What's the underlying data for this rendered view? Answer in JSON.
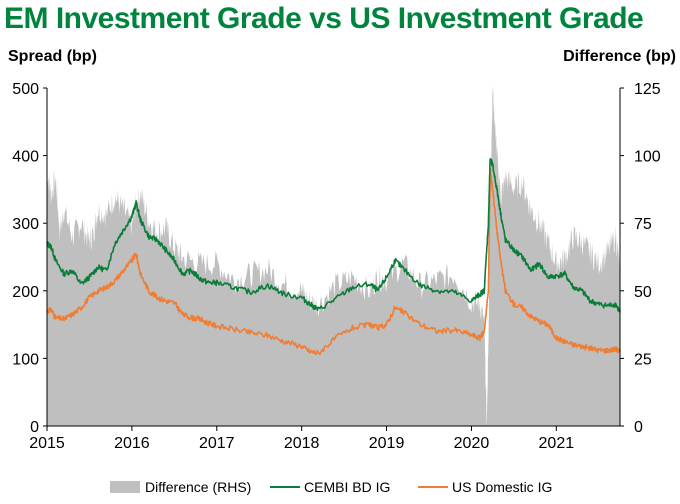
{
  "chart_data": {
    "type": "area+line",
    "title": "EM Investment Grade vs US Investment Grade",
    "ylabel_left": "Spread (bp)",
    "ylabel_right": "Difference (bp)",
    "x_ticks": [
      "2015",
      "2016",
      "2017",
      "2018",
      "2019",
      "2020",
      "2021"
    ],
    "x_range": [
      2015.0,
      2021.75
    ],
    "y_left": {
      "range": [
        0,
        500
      ],
      "ticks": [
        0,
        100,
        200,
        300,
        400,
        500
      ]
    },
    "y_right": {
      "range": [
        0,
        125
      ],
      "ticks": [
        0,
        25,
        50,
        75,
        100,
        125
      ]
    },
    "colors": {
      "difference": "#bfbfbf",
      "cembi": "#0a7d3a",
      "us": "#f07d32",
      "title": "#00843d"
    },
    "series": [
      {
        "name": "Difference (RHS)",
        "axis": "right",
        "kind": "area",
        "x": [
          2015.0,
          2015.05,
          2015.1,
          2015.15,
          2015.2,
          2015.3,
          2015.4,
          2015.5,
          2015.55,
          2015.6,
          2015.7,
          2015.8,
          2015.9,
          2016.0,
          2016.05,
          2016.1,
          2016.2,
          2016.3,
          2016.4,
          2016.5,
          2016.6,
          2016.8,
          2017.0,
          2017.2,
          2017.4,
          2017.6,
          2017.8,
          2018.0,
          2018.1,
          2018.2,
          2018.4,
          2018.6,
          2018.8,
          2018.9,
          2019.0,
          2019.2,
          2019.4,
          2019.6,
          2019.8,
          2020.0,
          2020.1,
          2020.15,
          2020.18,
          2020.2,
          2020.22,
          2020.25,
          2020.28,
          2020.3,
          2020.35,
          2020.4,
          2020.5,
          2020.6,
          2020.7,
          2020.8,
          2020.9,
          2021.0,
          2021.1,
          2021.2,
          2021.3,
          2021.4,
          2021.5,
          2021.6,
          2021.7,
          2021.75
        ],
        "values": [
          95,
          85,
          92,
          72,
          80,
          70,
          75,
          68,
          72,
          80,
          78,
          85,
          80,
          74,
          82,
          86,
          76,
          72,
          73,
          66,
          62,
          60,
          60,
          54,
          56,
          58,
          52,
          50,
          46,
          45,
          52,
          55,
          50,
          55,
          54,
          60,
          52,
          54,
          56,
          46,
          45,
          38,
          0,
          30,
          85,
          125,
          110,
          100,
          85,
          92,
          88,
          90,
          80,
          75,
          68,
          60,
          62,
          70,
          68,
          64,
          60,
          64,
          70,
          58
        ]
      },
      {
        "name": "CEMBI BD IG",
        "axis": "left",
        "kind": "line",
        "x": [
          2015.0,
          2015.05,
          2015.1,
          2015.2,
          2015.3,
          2015.4,
          2015.5,
          2015.6,
          2015.7,
          2015.8,
          2015.9,
          2016.0,
          2016.05,
          2016.1,
          2016.2,
          2016.3,
          2016.4,
          2016.5,
          2016.6,
          2016.7,
          2016.8,
          2016.9,
          2017.0,
          2017.2,
          2017.4,
          2017.6,
          2017.8,
          2018.0,
          2018.1,
          2018.2,
          2018.4,
          2018.6,
          2018.8,
          2018.9,
          2019.0,
          2019.1,
          2019.2,
          2019.4,
          2019.6,
          2019.8,
          2020.0,
          2020.1,
          2020.15,
          2020.2,
          2020.22,
          2020.25,
          2020.3,
          2020.35,
          2020.4,
          2020.5,
          2020.6,
          2020.7,
          2020.8,
          2020.9,
          2021.0,
          2021.1,
          2021.2,
          2021.3,
          2021.4,
          2021.5,
          2021.6,
          2021.7,
          2021.75
        ],
        "values": [
          270,
          265,
          245,
          225,
          230,
          210,
          220,
          235,
          230,
          270,
          290,
          310,
          330,
          305,
          280,
          275,
          260,
          245,
          225,
          230,
          218,
          212,
          212,
          205,
          198,
          208,
          195,
          190,
          180,
          172,
          188,
          205,
          210,
          200,
          220,
          245,
          232,
          208,
          200,
          198,
          185,
          195,
          200,
          300,
          395,
          385,
          350,
          310,
          275,
          260,
          250,
          230,
          240,
          220,
          222,
          225,
          205,
          200,
          185,
          180,
          178,
          180,
          168
        ]
      },
      {
        "name": "US Domestic IG",
        "axis": "left",
        "kind": "line",
        "x": [
          2015.0,
          2015.05,
          2015.1,
          2015.2,
          2015.3,
          2015.4,
          2015.5,
          2015.6,
          2015.7,
          2015.8,
          2015.9,
          2016.0,
          2016.05,
          2016.1,
          2016.2,
          2016.3,
          2016.4,
          2016.5,
          2016.6,
          2016.7,
          2016.8,
          2016.9,
          2017.0,
          2017.2,
          2017.4,
          2017.6,
          2017.8,
          2018.0,
          2018.1,
          2018.2,
          2018.4,
          2018.6,
          2018.8,
          2018.9,
          2019.0,
          2019.1,
          2019.2,
          2019.4,
          2019.6,
          2019.8,
          2020.0,
          2020.1,
          2020.15,
          2020.2,
          2020.22,
          2020.25,
          2020.3,
          2020.35,
          2020.4,
          2020.5,
          2020.6,
          2020.7,
          2020.8,
          2020.9,
          2021.0,
          2021.1,
          2021.2,
          2021.3,
          2021.4,
          2021.5,
          2021.6,
          2021.7,
          2021.75
        ],
        "values": [
          170,
          172,
          160,
          158,
          165,
          175,
          190,
          200,
          205,
          215,
          230,
          245,
          255,
          225,
          200,
          190,
          185,
          182,
          165,
          160,
          158,
          152,
          148,
          143,
          138,
          134,
          125,
          118,
          110,
          108,
          130,
          145,
          150,
          145,
          150,
          175,
          168,
          150,
          140,
          142,
          135,
          130,
          140,
          200,
          380,
          350,
          290,
          240,
          200,
          180,
          175,
          162,
          155,
          150,
          130,
          125,
          120,
          118,
          115,
          112,
          112,
          114,
          110
        ]
      }
    ],
    "legend": [
      "Difference (RHS)",
      "CEMBI BD IG",
      "US Domestic IG"
    ]
  }
}
